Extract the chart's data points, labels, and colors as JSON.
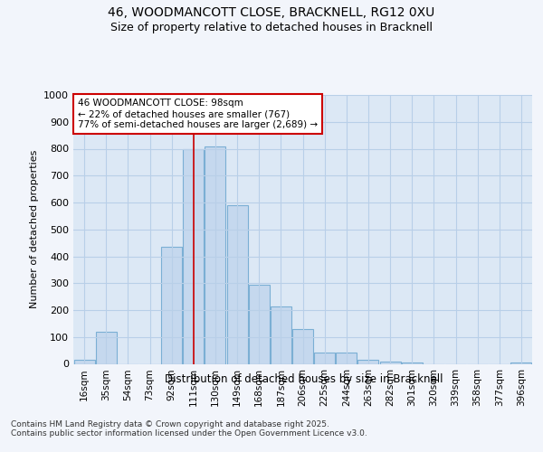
{
  "title_line1": "46, WOODMANCOTT CLOSE, BRACKNELL, RG12 0XU",
  "title_line2": "Size of property relative to detached houses in Bracknell",
  "xlabel": "Distribution of detached houses by size in Bracknell",
  "ylabel": "Number of detached properties",
  "categories": [
    "16sqm",
    "35sqm",
    "54sqm",
    "73sqm",
    "92sqm",
    "111sqm",
    "130sqm",
    "149sqm",
    "168sqm",
    "187sqm",
    "206sqm",
    "225sqm",
    "244sqm",
    "263sqm",
    "282sqm",
    "301sqm",
    "320sqm",
    "339sqm",
    "358sqm",
    "377sqm",
    "396sqm"
  ],
  "values": [
    15,
    120,
    0,
    0,
    435,
    800,
    810,
    590,
    295,
    215,
    130,
    42,
    42,
    15,
    10,
    5,
    0,
    0,
    0,
    0,
    5
  ],
  "bar_color": "#c5d8ee",
  "bar_edge_color": "#7bafd4",
  "property_line_x": 5.0,
  "property_line_color": "#cc0000",
  "annotation_text": "46 WOODMANCOTT CLOSE: 98sqm\n← 22% of detached houses are smaller (767)\n77% of semi-detached houses are larger (2,689) →",
  "annotation_box_color": "#ffffff",
  "annotation_box_edgecolor": "#cc0000",
  "ylim": [
    0,
    1000
  ],
  "yticks": [
    0,
    100,
    200,
    300,
    400,
    500,
    600,
    700,
    800,
    900,
    1000
  ],
  "footnote": "Contains HM Land Registry data © Crown copyright and database right 2025.\nContains public sector information licensed under the Open Government Licence v3.0.",
  "bg_color": "#f2f5fb",
  "plot_bg_color": "#dce8f5",
  "grid_color": "#b8cfe8"
}
